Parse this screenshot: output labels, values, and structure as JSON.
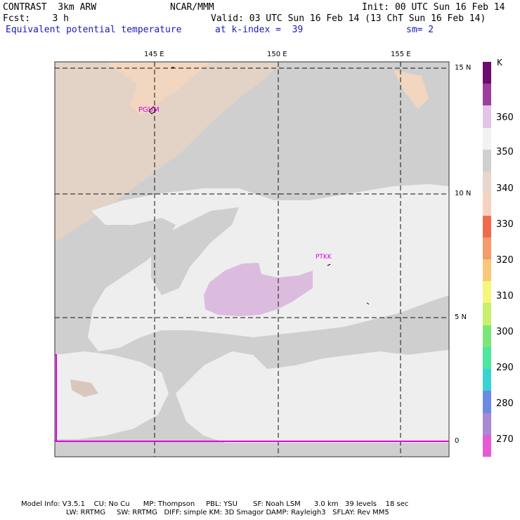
{
  "header": {
    "model": "CONTRAST  3km ARW",
    "center": "NCAR/MMM",
    "init": "Init: 00 UTC Sun 16 Feb 14",
    "fcst": "Fcst:    3 h",
    "valid": "Valid: 03 UTC Sun 16 Feb 14 (13 ChT Sun 16 Feb 14)",
    "field": "Equivalent potential temperature",
    "level": "at k-index =  39",
    "smooth": "sm= 2"
  },
  "map": {
    "lon_labels": [
      "145 E",
      "150 E",
      "155 E"
    ],
    "lat_labels": [
      "15 N",
      "10 N",
      "5 N",
      "0"
    ],
    "stations": [
      "PGUM",
      "PTKK"
    ]
  },
  "colorbar": {
    "unit": "K",
    "labels": [
      "360",
      "350",
      "340",
      "330",
      "320",
      "310",
      "300",
      "290",
      "280",
      "270"
    ],
    "colors": [
      "#6a0d6e",
      "#9c3f9c",
      "#e2c4e6",
      "#f2f2f2",
      "#cfcfcf",
      "#e6d6cc",
      "#f5d3c0",
      "#f26a4e",
      "#f59a6a",
      "#f7c77a",
      "#f7f57a",
      "#c8f06a",
      "#7ae67a",
      "#4ee6a0",
      "#3cd2d2",
      "#6a8ae6",
      "#a68ad2",
      "#e65ad2"
    ]
  },
  "footer": {
    "line1": "Model Info: V3.5.1    CU: No Cu      MP: Thompson     PBL: YSU       SF: Noah LSM      3.0 km   39 levels    18 sec",
    "line2": "LW: RRTMG     SW: RRTMG   DIFF: simple KM: 3D Smagor DAMP: Rayleigh3   SFLAY: Rev MM5"
  }
}
